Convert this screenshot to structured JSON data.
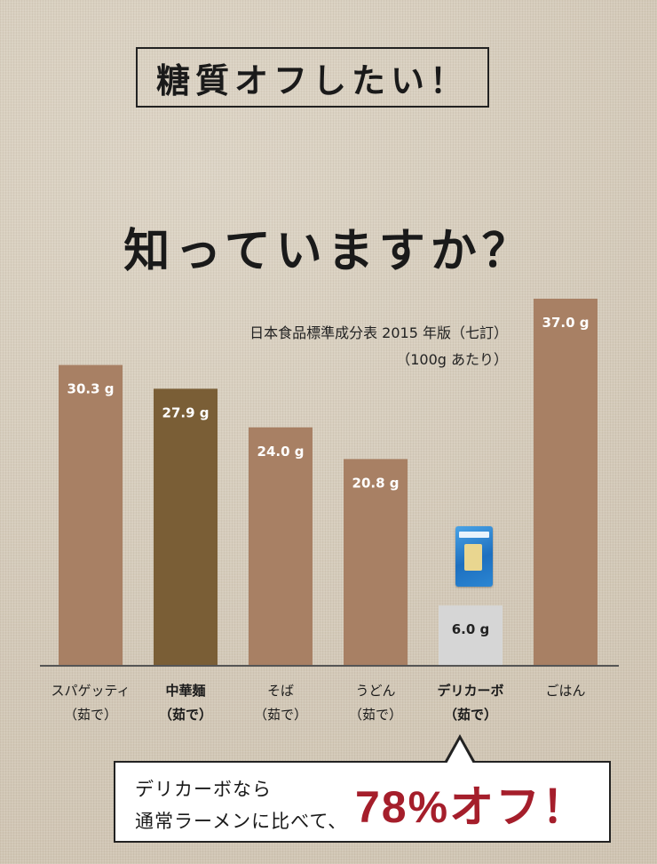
{
  "title": "糖質オフしたい！",
  "headline": "知っていますか？",
  "source_line1": "日本食品標準成分表 2015 年版（七訂）",
  "source_line2": "（100g あたり）",
  "chart_data": {
    "type": "bar",
    "categories": [
      [
        "スパゲッティ",
        "（茹で）"
      ],
      [
        "中華麺",
        "（茹で）"
      ],
      [
        "そば",
        "（茹で）"
      ],
      [
        "うどん",
        "（茹で）"
      ],
      [
        "デリカーボ",
        "（茹で）"
      ],
      [
        "ごはん",
        ""
      ]
    ],
    "values": [
      30.3,
      27.9,
      24.0,
      20.8,
      6.0,
      37.0
    ],
    "value_labels": [
      "30.3 g",
      "27.9 g",
      "24.0 g",
      "20.8 g",
      "6.0 g",
      "37.0 g"
    ],
    "bar_colors": [
      "#a88064",
      "#7a5e36",
      "#a88064",
      "#a88064",
      "#d6d6d6",
      "#a88064"
    ],
    "bold_categories": [
      1,
      4
    ],
    "ylim": [
      0,
      37.0
    ]
  },
  "callout": {
    "line1": "デリカーボなら",
    "line2": "通常ラーメンに比べて、",
    "big": "78%オフ！"
  },
  "icons": {
    "product": "pasta-package-icon"
  }
}
